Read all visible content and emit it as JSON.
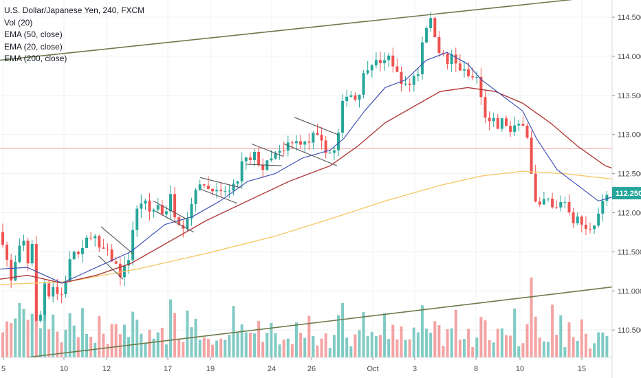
{
  "header": {
    "symbol_title": "U.S. Dollar/Japanese Yen, 240, FXCM",
    "indicators": [
      "Vol (20)",
      "EMA (50, close)",
      "EMA (20, close)",
      "EMA (200, close)"
    ]
  },
  "colors": {
    "up_candle": "#26a69a",
    "down_candle": "#ef5350",
    "volume_up": "#80cbc4",
    "volume_down": "#f4a3a3",
    "ema20": "#3f51b5",
    "ema50": "#b03a3a",
    "ema200": "#f6c96b",
    "channel_lines": "#6b7a4a",
    "pattern_lines": "#555555",
    "hline": "#f4a0a0",
    "price_badge": "#26a69a"
  },
  "chart_data": {
    "type": "candlestick",
    "y_ticks": [
      "114.500",
      "114.000",
      "113.500",
      "113.000",
      "112.500",
      "112.000",
      "111.500",
      "111.000",
      "110.500"
    ],
    "x_ticks": [
      "5",
      "10",
      "12",
      "17",
      "19",
      "24",
      "26",
      "Oct",
      "3",
      "8",
      "10",
      "15"
    ],
    "ylim": [
      110.15,
      114.72
    ],
    "current_price": "112.250",
    "horizontal_level": 112.82,
    "price_path": [
      [
        0,
        111.75
      ],
      [
        6,
        111.6
      ],
      [
        11,
        111.35
      ],
      [
        16,
        111.1
      ],
      [
        20,
        111.3
      ],
      [
        26,
        111.42
      ],
      [
        30,
        111.6
      ],
      [
        34,
        111.65
      ],
      [
        38,
        111.4
      ],
      [
        42,
        111.35
      ],
      [
        46,
        111.8
      ],
      [
        50,
        110.8
      ],
      [
        54,
        110.5
      ],
      [
        58,
        110.65
      ],
      [
        62,
        110.85
      ],
      [
        66,
        111.2
      ],
      [
        70,
        110.9
      ],
      [
        74,
        111.15
      ],
      [
        78,
        111.05
      ],
      [
        82,
        110.95
      ],
      [
        86,
        111.0
      ],
      [
        90,
        110.95
      ],
      [
        94,
        111.1
      ],
      [
        98,
        111.25
      ],
      [
        104,
        111.45
      ],
      [
        110,
        111.55
      ],
      [
        116,
        111.4
      ],
      [
        122,
        111.55
      ],
      [
        128,
        111.7
      ],
      [
        134,
        111.75
      ],
      [
        140,
        111.65
      ],
      [
        146,
        111.45
      ],
      [
        152,
        111.55
      ],
      [
        158,
        111.45
      ],
      [
        164,
        111.4
      ],
      [
        170,
        111.3
      ],
      [
        176,
        111.2
      ],
      [
        182,
        111.3
      ],
      [
        188,
        111.45
      ],
      [
        194,
        111.85
      ],
      [
        200,
        112.05
      ],
      [
        206,
        112.15
      ],
      [
        212,
        112.1
      ],
      [
        218,
        112.0
      ],
      [
        224,
        112.05
      ],
      [
        230,
        112.1
      ],
      [
        236,
        112.0
      ],
      [
        242,
        112.05
      ],
      [
        248,
        112.2
      ],
      [
        254,
        112.0
      ],
      [
        260,
        111.9
      ],
      [
        266,
        111.85
      ],
      [
        272,
        111.95
      ],
      [
        278,
        112.1
      ],
      [
        284,
        112.35
      ],
      [
        290,
        112.3
      ],
      [
        296,
        112.4
      ],
      [
        302,
        112.3
      ],
      [
        308,
        112.35
      ],
      [
        314,
        112.25
      ],
      [
        320,
        112.2
      ],
      [
        326,
        112.3
      ],
      [
        332,
        112.25
      ],
      [
        338,
        112.3
      ],
      [
        344,
        112.35
      ],
      [
        350,
        112.6
      ],
      [
        356,
        112.7
      ],
      [
        362,
        112.6
      ],
      [
        368,
        112.75
      ],
      [
        374,
        112.7
      ],
      [
        380,
        112.55
      ],
      [
        386,
        112.6
      ],
      [
        392,
        112.65
      ],
      [
        398,
        112.7
      ],
      [
        404,
        112.8
      ],
      [
        410,
        112.7
      ],
      [
        416,
        112.85
      ],
      [
        422,
        112.9
      ],
      [
        428,
        112.85
      ],
      [
        434,
        112.95
      ],
      [
        440,
        112.9
      ],
      [
        446,
        112.85
      ],
      [
        452,
        112.95
      ],
      [
        458,
        113.0
      ],
      [
        464,
        112.9
      ],
      [
        470,
        112.85
      ],
      [
        476,
        112.8
      ],
      [
        482,
        112.75
      ],
      [
        488,
        112.8
      ],
      [
        494,
        113.1
      ],
      [
        500,
        113.5
      ],
      [
        506,
        113.55
      ],
      [
        512,
        113.5
      ],
      [
        518,
        113.45
      ],
      [
        524,
        113.6
      ],
      [
        530,
        113.8
      ],
      [
        536,
        113.9
      ],
      [
        542,
        113.95
      ],
      [
        548,
        113.9
      ],
      [
        554,
        113.95
      ],
      [
        560,
        113.9
      ],
      [
        566,
        114.0
      ],
      [
        572,
        113.9
      ],
      [
        578,
        113.75
      ],
      [
        584,
        113.7
      ],
      [
        590,
        113.6
      ],
      [
        596,
        113.65
      ],
      [
        602,
        113.75
      ],
      [
        608,
        113.8
      ],
      [
        614,
        114.2
      ],
      [
        620,
        114.4
      ],
      [
        626,
        114.45
      ],
      [
        632,
        114.3
      ],
      [
        638,
        114.1
      ],
      [
        644,
        114.0
      ],
      [
        650,
        113.9
      ],
      [
        656,
        114.0
      ],
      [
        662,
        113.9
      ],
      [
        668,
        113.85
      ],
      [
        674,
        113.8
      ],
      [
        680,
        113.75
      ],
      [
        686,
        113.7
      ],
      [
        692,
        113.8
      ],
      [
        698,
        113.5
      ],
      [
        704,
        113.3
      ],
      [
        710,
        113.1
      ],
      [
        716,
        113.2
      ],
      [
        722,
        113.05
      ],
      [
        728,
        113.15
      ],
      [
        734,
        113.2
      ],
      [
        740,
        113.0
      ],
      [
        746,
        113.05
      ],
      [
        752,
        113.1
      ],
      [
        758,
        113.15
      ],
      [
        764,
        113.2
      ],
      [
        770,
        112.7
      ],
      [
        776,
        112.2
      ],
      [
        782,
        112.0
      ],
      [
        788,
        112.1
      ],
      [
        794,
        112.2
      ],
      [
        800,
        112.1
      ],
      [
        806,
        112.0
      ],
      [
        812,
        112.1
      ],
      [
        818,
        112.2
      ],
      [
        824,
        112.1
      ],
      [
        830,
        112.0
      ],
      [
        836,
        111.85
      ],
      [
        842,
        111.95
      ],
      [
        848,
        111.8
      ],
      [
        854,
        111.75
      ],
      [
        860,
        111.85
      ],
      [
        866,
        111.9
      ],
      [
        872,
        112.05
      ],
      [
        878,
        112.15
      ],
      [
        884,
        112.25
      ],
      [
        890,
        112.25
      ]
    ],
    "ema20_path": [
      [
        0,
        111.28
      ],
      [
        40,
        111.3
      ],
      [
        90,
        111.1
      ],
      [
        140,
        111.3
      ],
      [
        190,
        111.5
      ],
      [
        240,
        111.85
      ],
      [
        280,
        111.95
      ],
      [
        320,
        112.15
      ],
      [
        360,
        112.4
      ],
      [
        400,
        112.5
      ],
      [
        440,
        112.7
      ],
      [
        480,
        112.8
      ],
      [
        500,
        112.95
      ],
      [
        530,
        113.3
      ],
      [
        560,
        113.6
      ],
      [
        590,
        113.7
      ],
      [
        620,
        113.95
      ],
      [
        650,
        114.05
      ],
      [
        680,
        113.9
      ],
      [
        700,
        113.7
      ],
      [
        730,
        113.5
      ],
      [
        760,
        113.3
      ],
      [
        780,
        112.95
      ],
      [
        810,
        112.55
      ],
      [
        840,
        112.35
      ],
      [
        870,
        112.15
      ],
      [
        890,
        112.2
      ]
    ],
    "ema50_path": [
      [
        0,
        111.15
      ],
      [
        40,
        111.2
      ],
      [
        90,
        111.1
      ],
      [
        140,
        111.2
      ],
      [
        190,
        111.35
      ],
      [
        240,
        111.6
      ],
      [
        300,
        111.9
      ],
      [
        360,
        112.15
      ],
      [
        420,
        112.4
      ],
      [
        480,
        112.6
      ],
      [
        520,
        112.85
      ],
      [
        560,
        113.15
      ],
      [
        600,
        113.35
      ],
      [
        640,
        113.55
      ],
      [
        680,
        113.6
      ],
      [
        720,
        113.55
      ],
      [
        760,
        113.4
      ],
      [
        800,
        113.15
      ],
      [
        840,
        112.85
      ],
      [
        880,
        112.6
      ],
      [
        890,
        112.57
      ]
    ],
    "ema200_path": [
      [
        0,
        111.08
      ],
      [
        100,
        111.12
      ],
      [
        200,
        111.28
      ],
      [
        300,
        111.48
      ],
      [
        400,
        111.7
      ],
      [
        480,
        111.92
      ],
      [
        560,
        112.15
      ],
      [
        640,
        112.35
      ],
      [
        700,
        112.47
      ],
      [
        760,
        112.53
      ],
      [
        820,
        112.5
      ],
      [
        890,
        112.43
      ]
    ],
    "channel_lines": [
      [
        [
          0,
          113.95
        ],
        [
          890,
          114.78
        ]
      ],
      [
        [
          40,
          110.15
        ],
        [
          890,
          111.05
        ]
      ]
    ],
    "pattern_lines": [
      [
        [
          147,
          111.82
        ],
        [
          194,
          111.47
        ]
      ],
      [
        [
          143,
          111.45
        ],
        [
          179,
          111.15
        ]
      ],
      [
        [
          223,
          112.15
        ],
        [
          271,
          111.92
        ]
      ],
      [
        [
          226,
          112.02
        ],
        [
          282,
          111.75
        ]
      ],
      [
        [
          291,
          112.45
        ],
        [
          350,
          112.32
        ]
      ],
      [
        [
          292,
          112.3
        ],
        [
          345,
          112.12
        ]
      ],
      [
        [
          366,
          112.88
        ],
        [
          412,
          112.72
        ]
      ],
      [
        [
          358,
          112.62
        ],
        [
          410,
          112.6
        ]
      ],
      [
        [
          428,
          113.22
        ],
        [
          491,
          113.0
        ]
      ],
      [
        [
          413,
          112.88
        ],
        [
          490,
          112.6
        ]
      ]
    ]
  }
}
